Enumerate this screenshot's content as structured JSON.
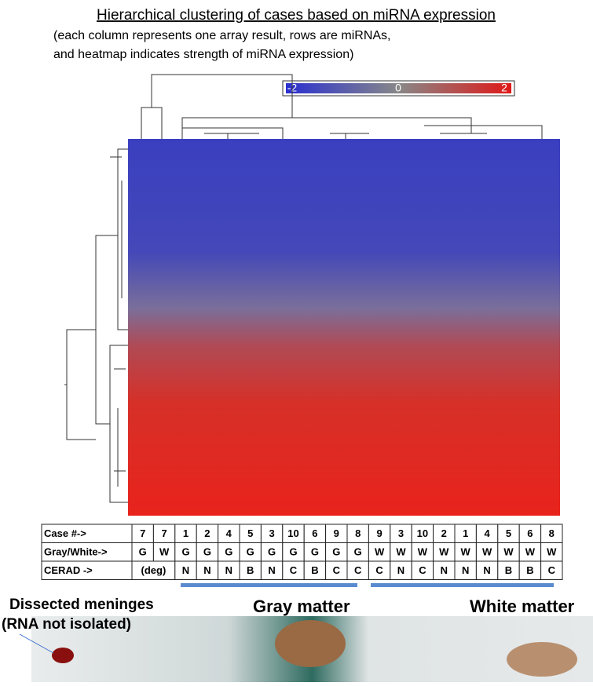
{
  "title": "Hierarchical clustering of cases based on miRNA expression",
  "subtitle_lines": [
    "(each column represents one array result, rows are miRNAs,",
    "and heatmap indicates strength of miRNA expression)"
  ],
  "colorbar": {
    "ticks": [
      -2,
      0,
      2
    ]
  },
  "table": {
    "rows": [
      [
        "Case #->",
        "7",
        "7",
        "1",
        "2",
        "4",
        "5",
        "3",
        "10",
        "6",
        "9",
        "8",
        "9",
        "3",
        "10",
        "2",
        "1",
        "4",
        "5",
        "6",
        "8"
      ],
      [
        "Gray/White->",
        "G",
        "W",
        "G",
        "G",
        "G",
        "G",
        "G",
        "G",
        "G",
        "G",
        "G",
        "W",
        "W",
        "W",
        "W",
        "W",
        "W",
        "W",
        "W",
        "W"
      ],
      [
        "CERAD ->",
        "(deg)",
        "N",
        "N",
        "N",
        "B",
        "N",
        "C",
        "B",
        "C",
        "C",
        "C",
        "N",
        "C",
        "N",
        "N",
        "N",
        "B",
        "B",
        "C"
      ]
    ]
  },
  "photo_labels": {
    "meninges": "Dissected meninges",
    "meninges_note": "(RNA not isolated)",
    "gray": "Gray matter",
    "white": "White matter"
  }
}
